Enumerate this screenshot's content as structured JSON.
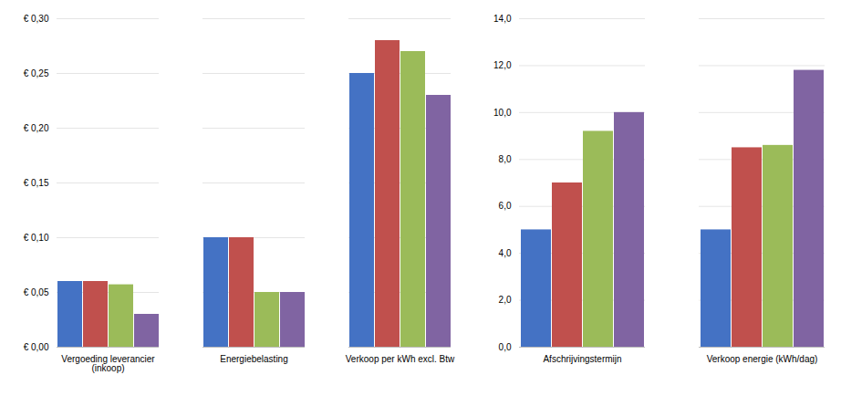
{
  "chart_data": [
    {
      "type": "bar",
      "categories": [
        "Vergoeding leverancier\n(inkoop)",
        "Energiebelasting",
        "Verkoop per kWh excl. Btw"
      ],
      "series": [
        {
          "color": "#4472C4",
          "values": [
            0.06,
            0.1,
            0.25
          ]
        },
        {
          "color": "#C0504D",
          "values": [
            0.06,
            0.1,
            0.28
          ]
        },
        {
          "color": "#9BBB59",
          "values": [
            0.057,
            0.05,
            0.27
          ]
        },
        {
          "color": "#8064A2",
          "values": [
            0.03,
            0.05,
            0.23
          ]
        }
      ],
      "ylim": [
        0,
        0.3
      ],
      "yticks": [
        {
          "value": 0.0,
          "label": "€ 0,00"
        },
        {
          "value": 0.05,
          "label": "€ 0,05"
        },
        {
          "value": 0.1,
          "label": "€ 0,10"
        },
        {
          "value": 0.15,
          "label": "€ 0,15"
        },
        {
          "value": 0.2,
          "label": "€ 0,20"
        },
        {
          "value": 0.25,
          "label": "€ 0,25"
        },
        {
          "value": 0.3,
          "label": "€ 0,30"
        }
      ],
      "grid": true
    },
    {
      "type": "bar",
      "categories": [
        "Afschrijvingstermijn",
        "Verkoop energie (kWh/dag)"
      ],
      "series": [
        {
          "color": "#4472C4",
          "values": [
            5.0,
            5.0
          ]
        },
        {
          "color": "#C0504D",
          "values": [
            7.0,
            8.5
          ]
        },
        {
          "color": "#9BBB59",
          "values": [
            9.2,
            8.6
          ]
        },
        {
          "color": "#8064A2",
          "values": [
            10.0,
            11.8
          ]
        }
      ],
      "ylim": [
        0,
        14.0
      ],
      "yticks": [
        {
          "value": 0,
          "label": "0,0"
        },
        {
          "value": 2,
          "label": "2,0"
        },
        {
          "value": 4,
          "label": "4,0"
        },
        {
          "value": 6,
          "label": "6,0"
        },
        {
          "value": 8,
          "label": "8,0"
        },
        {
          "value": 10,
          "label": "10,0"
        },
        {
          "value": 12,
          "label": "12,0"
        },
        {
          "value": 14,
          "label": "14,0"
        }
      ],
      "grid": true
    }
  ]
}
